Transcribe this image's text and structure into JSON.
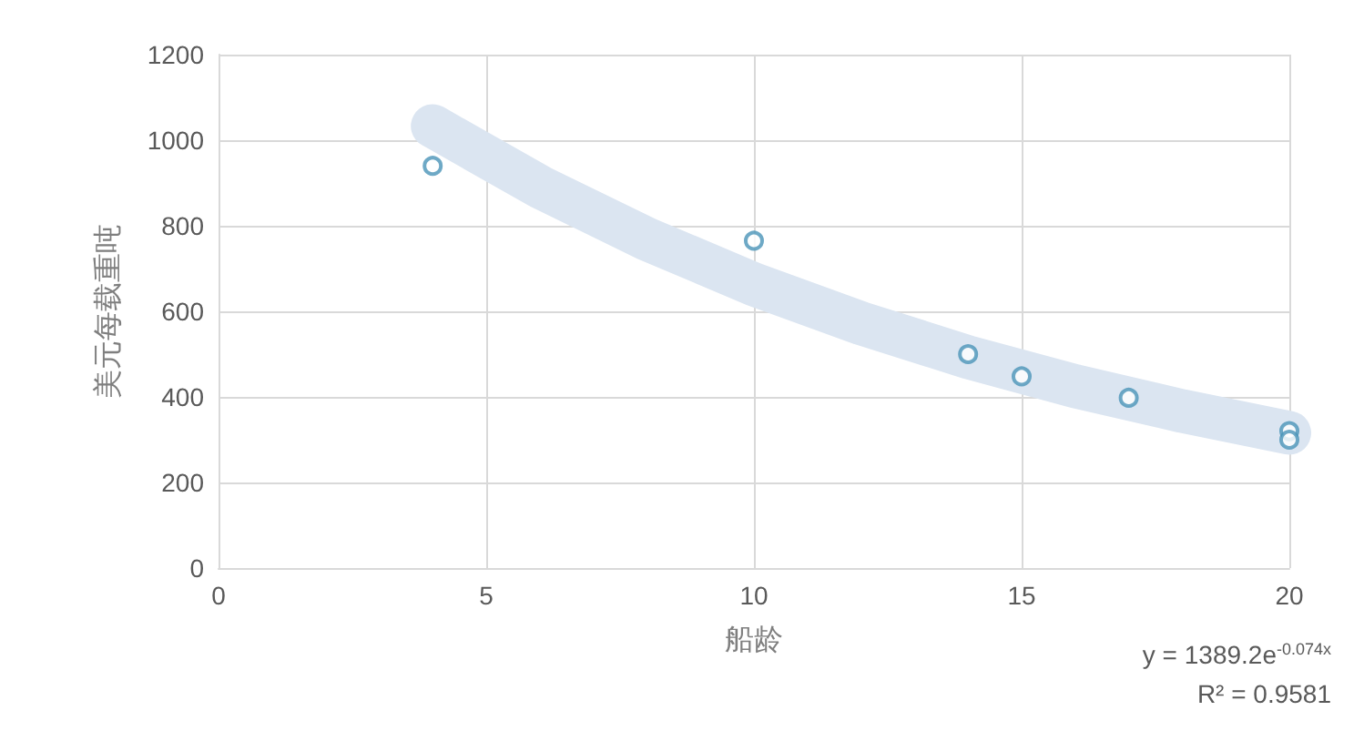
{
  "chart_data": {
    "type": "scatter",
    "xlabel": "船龄",
    "ylabel": "美元每载重吨",
    "xlim": [
      0,
      20
    ],
    "xticks": [
      0,
      5,
      10,
      15,
      20
    ],
    "ylim": [
      0,
      1200
    ],
    "yticks": [
      0,
      200,
      400,
      600,
      800,
      1000,
      1200
    ],
    "grid": true,
    "series": [
      {
        "type": "line",
        "marker": "none",
        "color": "#dbe5f1",
        "x": [
          4,
          6,
          8,
          10,
          12,
          14,
          16,
          18,
          20
        ],
        "values": [
          1033,
          891,
          769,
          663,
          572,
          493,
          425,
          367,
          316
        ]
      },
      {
        "marker": "circle",
        "color": "#4a93b8",
        "x": [
          4,
          10,
          14,
          15,
          17,
          20,
          20
        ],
        "values": [
          940,
          765,
          500,
          448,
          398,
          320,
          300
        ]
      }
    ],
    "annotations": [
      "y = 1389.2e$^{-0.074x}$",
      "R² = 0.9581"
    ]
  }
}
